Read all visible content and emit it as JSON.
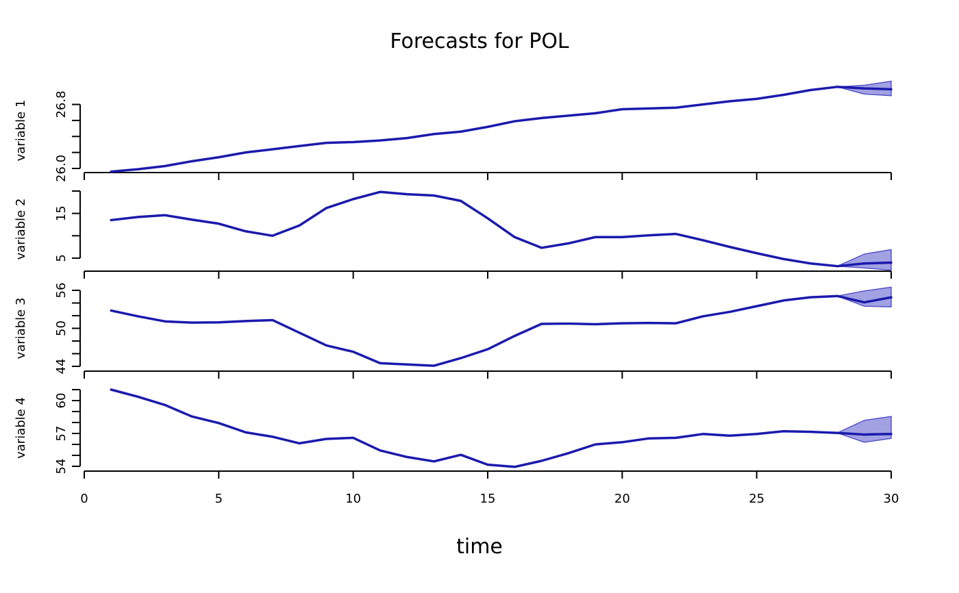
{
  "chart_data": {
    "type": "line",
    "title": "Forecasts for POL",
    "xlabel": "time",
    "xlim": [
      0,
      30
    ],
    "x_ticks": [
      "0",
      "5",
      "10",
      "15",
      "20",
      "25",
      "30"
    ],
    "colors": {
      "line": "#1a1aad",
      "band_fill": "#5555cc",
      "axis": "#000000"
    },
    "panels": [
      {
        "ylabel": "variable 1",
        "ylim": [
          26.0,
          26.95
        ],
        "y_ticks": [
          26.0,
          26.2,
          26.4,
          26.6,
          26.8
        ],
        "y_tick_labels": [
          {
            "value": 26.0,
            "label": "26.0"
          },
          {
            "value": 26.8,
            "label": "26.8"
          }
        ],
        "x": [
          1,
          2,
          3,
          4,
          5,
          6,
          7,
          8,
          9,
          10,
          11,
          12,
          13,
          14,
          15,
          16,
          17,
          18,
          19,
          20,
          21,
          22,
          23,
          24,
          25,
          26,
          27,
          28
        ],
        "values": [
          25.96,
          25.99,
          26.03,
          26.09,
          26.14,
          26.2,
          26.24,
          26.28,
          26.32,
          26.33,
          26.35,
          26.38,
          26.43,
          26.46,
          26.52,
          26.59,
          26.63,
          26.66,
          26.69,
          26.74,
          26.75,
          26.76,
          26.8,
          26.84,
          26.87,
          26.92,
          26.98,
          27.02
        ],
        "forecast": {
          "x": [
            28,
            29,
            30
          ],
          "values": [
            27.02,
            27.0,
            26.99
          ],
          "lower": [
            27.02,
            26.93,
            26.91
          ],
          "upper": [
            27.02,
            27.04,
            27.09
          ]
        }
      },
      {
        "ylabel": "variable 2",
        "ylim": [
          3,
          20
        ],
        "y_ticks": [
          5,
          10,
          15,
          20
        ],
        "y_tick_labels": [
          {
            "value": 5,
            "label": "5"
          },
          {
            "value": 15,
            "label": "15"
          }
        ],
        "x": [
          1,
          2,
          3,
          4,
          5,
          6,
          7,
          8,
          9,
          10,
          11,
          12,
          13,
          14,
          15,
          16,
          17,
          18,
          19,
          20,
          21,
          22,
          23,
          24,
          25,
          26,
          27,
          28
        ],
        "values": [
          13.5,
          14.2,
          14.6,
          13.6,
          12.7,
          11.0,
          10.0,
          12.3,
          16.2,
          18.2,
          19.8,
          19.3,
          19.0,
          17.8,
          13.9,
          9.7,
          7.3,
          8.3,
          9.7,
          9.7,
          10.1,
          10.4,
          9.0,
          7.5,
          6.1,
          4.8,
          3.8,
          3.2
        ],
        "forecast": {
          "x": [
            28,
            29,
            30
          ],
          "values": [
            3.2,
            3.8,
            4.0
          ],
          "lower": [
            3.2,
            2.8,
            2.3
          ],
          "upper": [
            3.2,
            5.9,
            6.9
          ]
        }
      },
      {
        "ylabel": "variable 3",
        "ylim": [
          44,
          56
        ],
        "y_ticks": [
          44,
          46,
          48,
          50,
          52,
          54,
          56
        ],
        "y_tick_labels": [
          {
            "value": 44,
            "label": "44"
          },
          {
            "value": 50,
            "label": "50"
          },
          {
            "value": 56,
            "label": "56"
          }
        ],
        "x": [
          1,
          2,
          3,
          4,
          5,
          6,
          7,
          8,
          9,
          10,
          11,
          12,
          13,
          14,
          15,
          16,
          17,
          18,
          19,
          20,
          21,
          22,
          23,
          24,
          25,
          26,
          27,
          28
        ],
        "values": [
          52.8,
          51.9,
          51.1,
          50.9,
          50.95,
          51.15,
          51.3,
          49.3,
          47.3,
          46.3,
          44.5,
          44.3,
          44.1,
          45.3,
          46.7,
          48.8,
          50.7,
          50.75,
          50.65,
          50.8,
          50.85,
          50.8,
          51.9,
          52.6,
          53.5,
          54.4,
          54.9,
          55.1
        ],
        "forecast": {
          "x": [
            28,
            29,
            30
          ],
          "values": [
            55.1,
            54.1,
            54.9
          ],
          "lower": [
            55.1,
            53.5,
            53.4
          ],
          "upper": [
            55.1,
            55.9,
            56.5
          ]
        }
      },
      {
        "ylabel": "variable 4",
        "ylim": [
          54,
          61
        ],
        "y_ticks": [
          54,
          55,
          56,
          57,
          58,
          59,
          60,
          61
        ],
        "y_tick_labels": [
          {
            "value": 54,
            "label": "54"
          },
          {
            "value": 57,
            "label": "57"
          },
          {
            "value": 60,
            "label": "60"
          }
        ],
        "x": [
          1,
          2,
          3,
          4,
          5,
          6,
          7,
          8,
          9,
          10,
          11,
          12,
          13,
          14,
          15,
          16,
          17,
          18,
          19,
          20,
          21,
          22,
          23,
          24,
          25,
          26,
          27,
          28
        ],
        "values": [
          61.0,
          60.35,
          59.6,
          58.55,
          57.95,
          57.1,
          56.7,
          56.1,
          56.5,
          56.6,
          55.45,
          54.85,
          54.45,
          55.05,
          54.15,
          53.95,
          54.5,
          55.2,
          56.0,
          56.2,
          56.55,
          56.6,
          56.95,
          56.8,
          56.95,
          57.2,
          57.15,
          57.05
        ],
        "forecast": {
          "x": [
            28,
            29,
            30
          ],
          "values": [
            57.05,
            56.9,
            56.95
          ],
          "lower": [
            57.05,
            56.2,
            56.55
          ],
          "upper": [
            57.05,
            58.2,
            58.55
          ]
        }
      }
    ]
  }
}
